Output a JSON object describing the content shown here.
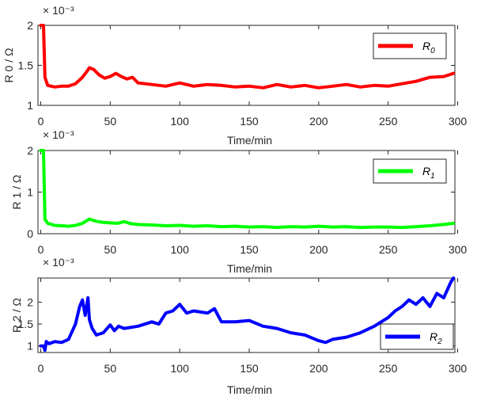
{
  "chart_data": [
    {
      "type": "line",
      "id": "r0",
      "title": "",
      "xlabel": "Time/min",
      "ylabel": "R 0 / Ω",
      "y_exponent_label": "× 10⁻³",
      "xlim": [
        -2,
        298
      ],
      "ylim": [
        1,
        2
      ],
      "xticks": [
        0,
        50,
        100,
        150,
        200,
        250,
        300
      ],
      "yticks": [
        1,
        1.5,
        2
      ],
      "ytick_labels": [
        "1",
        "1.5",
        "2"
      ],
      "legend": {
        "label": "R",
        "subscript": "0",
        "position": "top-right"
      },
      "series": [
        {
          "name": "R0",
          "color": "#ff0000",
          "x": [
            0,
            2,
            3,
            5,
            10,
            15,
            20,
            25,
            30,
            33,
            35,
            38,
            42,
            46,
            50,
            54,
            58,
            62,
            66,
            70,
            80,
            90,
            100,
            110,
            120,
            130,
            140,
            150,
            160,
            170,
            180,
            190,
            200,
            210,
            220,
            230,
            240,
            250,
            260,
            270,
            280,
            290,
            297
          ],
          "values": [
            2.0,
            2.0,
            1.35,
            1.25,
            1.23,
            1.24,
            1.24,
            1.27,
            1.35,
            1.42,
            1.47,
            1.45,
            1.38,
            1.34,
            1.36,
            1.4,
            1.36,
            1.33,
            1.35,
            1.28,
            1.26,
            1.24,
            1.28,
            1.24,
            1.26,
            1.25,
            1.23,
            1.24,
            1.22,
            1.26,
            1.23,
            1.25,
            1.22,
            1.24,
            1.26,
            1.23,
            1.25,
            1.24,
            1.27,
            1.3,
            1.35,
            1.36,
            1.4
          ]
        }
      ]
    },
    {
      "type": "line",
      "id": "r1",
      "title": "",
      "xlabel": "Time/min",
      "ylabel": "R 1 / Ω",
      "y_exponent_label": "× 10⁻³",
      "xlim": [
        -2,
        298
      ],
      "ylim": [
        0,
        2
      ],
      "xticks": [
        0,
        50,
        100,
        150,
        200,
        250,
        300
      ],
      "yticks": [
        0,
        1,
        2
      ],
      "ytick_labels": [
        "0",
        "1",
        "2"
      ],
      "legend": {
        "label": "R",
        "subscript": "1",
        "position": "top-right"
      },
      "series": [
        {
          "name": "R1",
          "color": "#00ff00",
          "x": [
            0,
            2,
            3,
            5,
            10,
            15,
            20,
            25,
            30,
            35,
            40,
            45,
            50,
            55,
            60,
            65,
            70,
            80,
            90,
            100,
            110,
            120,
            130,
            140,
            150,
            160,
            170,
            180,
            190,
            200,
            210,
            220,
            230,
            240,
            250,
            260,
            270,
            280,
            290,
            297
          ],
          "values": [
            2.0,
            2.0,
            0.35,
            0.25,
            0.2,
            0.19,
            0.18,
            0.2,
            0.25,
            0.35,
            0.3,
            0.27,
            0.26,
            0.25,
            0.29,
            0.24,
            0.22,
            0.21,
            0.19,
            0.2,
            0.18,
            0.19,
            0.17,
            0.18,
            0.16,
            0.17,
            0.15,
            0.17,
            0.16,
            0.18,
            0.16,
            0.17,
            0.15,
            0.16,
            0.16,
            0.15,
            0.17,
            0.19,
            0.22,
            0.25
          ]
        }
      ]
    },
    {
      "type": "line",
      "id": "r2",
      "title": "",
      "xlabel": "Time/min",
      "ylabel": "R 2 / Ω",
      "y_exponent_label": "× 10⁻³",
      "xlim": [
        -2,
        298
      ],
      "ylim": [
        0.85,
        2.55
      ],
      "xticks": [
        0,
        50,
        100,
        150,
        200,
        250,
        300
      ],
      "yticks": [
        1,
        1.5,
        2
      ],
      "ytick_labels": [
        "1",
        "1.5",
        "2"
      ],
      "legend": {
        "label": "R",
        "subscript": "2",
        "position": "bottom-right"
      },
      "series": [
        {
          "name": "R2",
          "color": "#0000ff",
          "x": [
            0,
            2,
            3,
            4,
            6,
            10,
            15,
            20,
            25,
            28,
            30,
            32,
            34,
            35,
            37,
            40,
            45,
            50,
            53,
            56,
            60,
            70,
            80,
            85,
            90,
            95,
            100,
            105,
            110,
            120,
            125,
            130,
            140,
            150,
            160,
            170,
            180,
            190,
            200,
            205,
            210,
            220,
            230,
            240,
            245,
            250,
            255,
            260,
            265,
            270,
            275,
            280,
            285,
            290,
            295,
            297
          ],
          "values": [
            1.0,
            1.0,
            0.9,
            1.1,
            1.05,
            1.1,
            1.08,
            1.15,
            1.5,
            1.9,
            2.05,
            1.7,
            2.1,
            1.6,
            1.4,
            1.25,
            1.3,
            1.48,
            1.35,
            1.45,
            1.4,
            1.45,
            1.55,
            1.5,
            1.75,
            1.8,
            1.95,
            1.75,
            1.8,
            1.75,
            1.85,
            1.55,
            1.55,
            1.58,
            1.45,
            1.4,
            1.3,
            1.25,
            1.12,
            1.08,
            1.15,
            1.2,
            1.3,
            1.45,
            1.55,
            1.65,
            1.8,
            1.9,
            2.05,
            1.95,
            2.1,
            1.9,
            2.2,
            2.1,
            2.45,
            2.55
          ]
        }
      ]
    }
  ]
}
